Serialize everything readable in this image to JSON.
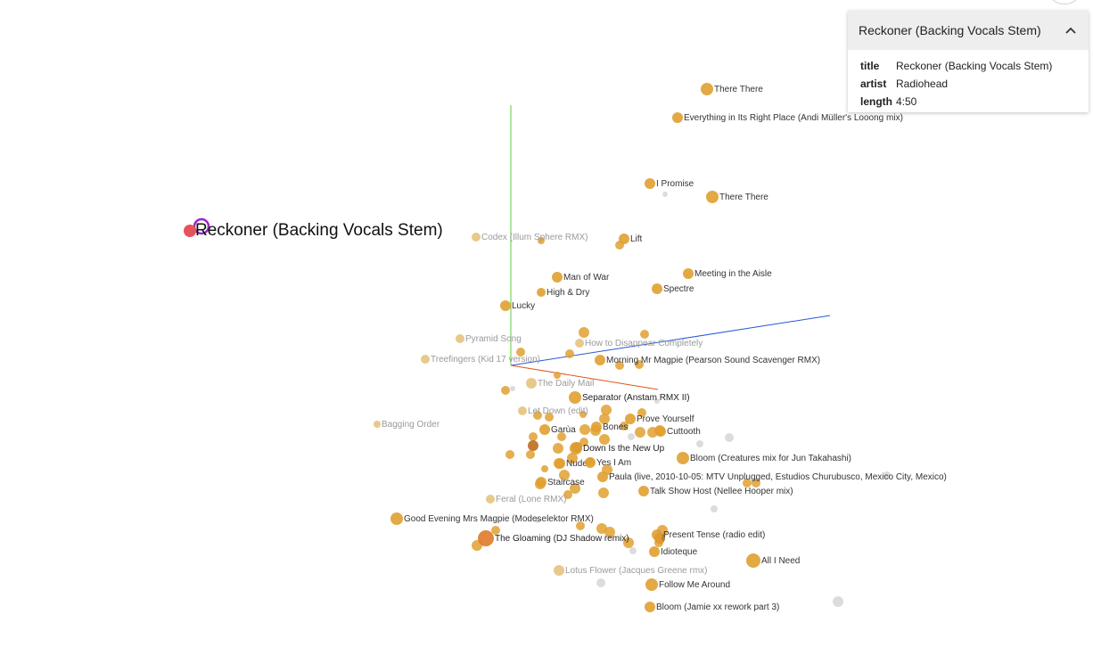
{
  "selected": {
    "label": "Reckoner (Backing Vocals Stem)",
    "color": "#e8525a",
    "halo": "#9b27c4"
  },
  "panel": {
    "title": "Reckoner (Backing Vocals Stem)",
    "fields": [
      {
        "key": "title",
        "value": "Reckoner (Backing Vocals Stem)"
      },
      {
        "key": "artist",
        "value": "Radiohead"
      },
      {
        "key": "length",
        "value": "4:50"
      }
    ]
  },
  "colors": {
    "point": "#e0a030",
    "point_faint": "#e6c37e",
    "point_dark": "#b86312",
    "inactive": "#dcdcdc",
    "axis_x": "#e0561e",
    "axis_y": "#5ccf3a",
    "axis_z": "#2a58d6"
  },
  "songs": [
    {
      "label": "There There",
      "fade": "normal"
    },
    {
      "label": "Everything in Its Right Place (Andi Müller's Looong mix)",
      "fade": "normal"
    },
    {
      "label": "I Promise",
      "fade": "normal"
    },
    {
      "label": "There There",
      "fade": "normal"
    },
    {
      "label": "Codex (Illum Sphere RMX)",
      "fade": "faint"
    },
    {
      "label": "Lift",
      "fade": "normal"
    },
    {
      "label": "Meeting in the Aisle",
      "fade": "normal"
    },
    {
      "label": "Spectre",
      "fade": "normal"
    },
    {
      "label": "Man of War",
      "fade": "normal"
    },
    {
      "label": "High & Dry",
      "fade": "normal"
    },
    {
      "label": "Lucky",
      "fade": "normal"
    },
    {
      "label": "Pyramid Song",
      "fade": "faint"
    },
    {
      "label": "How to Disappear Completely",
      "fade": "faint"
    },
    {
      "label": "Treefingers (Kid 17 version)",
      "fade": "faint"
    },
    {
      "label": "Morning Mr Magpie (Pearson Sound Scavenger RMX)",
      "fade": "normal"
    },
    {
      "label": "The Daily Mail",
      "fade": "faint"
    },
    {
      "label": "Separator (Anstam RMX II)",
      "fade": "hl"
    },
    {
      "label": "Let Down (edit)",
      "fade": "faint"
    },
    {
      "label": "Prove Yourself",
      "fade": "normal"
    },
    {
      "label": "Bones",
      "fade": "normal"
    },
    {
      "label": "Garùa",
      "fade": "normal"
    },
    {
      "label": "Cuttooth",
      "fade": "normal"
    },
    {
      "label": "Bagging Order",
      "fade": "faint"
    },
    {
      "label": "Down Is the New Up",
      "fade": "hl"
    },
    {
      "label": "Bloom (Creatures mix for Jun Takahashi)",
      "fade": "normal"
    },
    {
      "label": "Nude",
      "fade": "normal"
    },
    {
      "label": "Yes I Am",
      "fade": "normal"
    },
    {
      "label": "Paula (live, 2010-10-05: MTV Unplugged, Estudios Churubusco, Mexico City, Mexico)",
      "fade": "normal"
    },
    {
      "label": "Staircase",
      "fade": "normal"
    },
    {
      "label": "Talk Show Host (Nellee Hooper mix)",
      "fade": "normal"
    },
    {
      "label": "Feral (Lone RMX)",
      "fade": "faint"
    },
    {
      "label": "Good Evening Mrs Magpie (Modeselektor RMX)",
      "fade": "normal"
    },
    {
      "label": "The Gloaming (DJ Shadow remix)",
      "fade": "hl"
    },
    {
      "label": "Present Tense (radio edit)",
      "fade": "normal"
    },
    {
      "label": "Idioteque",
      "fade": "normal"
    },
    {
      "label": "All I Need",
      "fade": "normal"
    },
    {
      "label": "Lotus Flower (Jacques Greene rmx)",
      "fade": "faint"
    },
    {
      "label": "Follow Me Around",
      "fade": "normal"
    },
    {
      "label": "Bloom (Jamie xx rework part 3)",
      "fade": "normal"
    }
  ]
}
